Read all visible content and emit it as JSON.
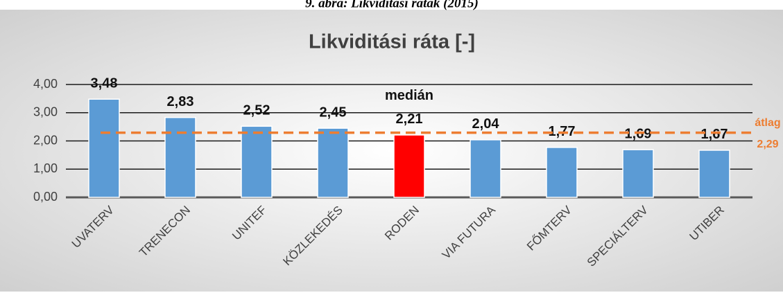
{
  "caption": "9. ábra: Likviditási ráták (2015)",
  "chart_data": {
    "type": "bar",
    "title": "Likviditási ráta [-]",
    "categories": [
      "UVATERV",
      "TRENECON",
      "UNITEF",
      "KÖZLEKEDÉS",
      "RODEN",
      "VIA FUTURA",
      "FŐMTERV",
      "SPECIÁLTERV",
      "UTIBER"
    ],
    "values": [
      3.48,
      2.83,
      2.52,
      2.45,
      2.21,
      2.04,
      1.77,
      1.69,
      1.67
    ],
    "value_labels": [
      "3,48",
      "2,83",
      "2,52",
      "2,45",
      "2,21",
      "2,04",
      "1,77",
      "1,69",
      "1,67"
    ],
    "colors": [
      "#5b9bd5",
      "#5b9bd5",
      "#5b9bd5",
      "#5b9bd5",
      "#ff0000",
      "#5b9bd5",
      "#5b9bd5",
      "#5b9bd5",
      "#5b9bd5"
    ],
    "ylim": [
      0,
      4
    ],
    "yticks": [
      {
        "value": 0,
        "label": "0,00"
      },
      {
        "value": 1,
        "label": "1,00"
      },
      {
        "value": 2,
        "label": "2,00"
      },
      {
        "value": 3,
        "label": "3,00"
      },
      {
        "value": 4,
        "label": "4,00"
      }
    ],
    "grid": true,
    "annotation": {
      "text": "medián",
      "category": "RODEN"
    },
    "average": {
      "name": "átlag",
      "value": 2.29,
      "label": "2,29",
      "color": "#ed7d31"
    }
  }
}
